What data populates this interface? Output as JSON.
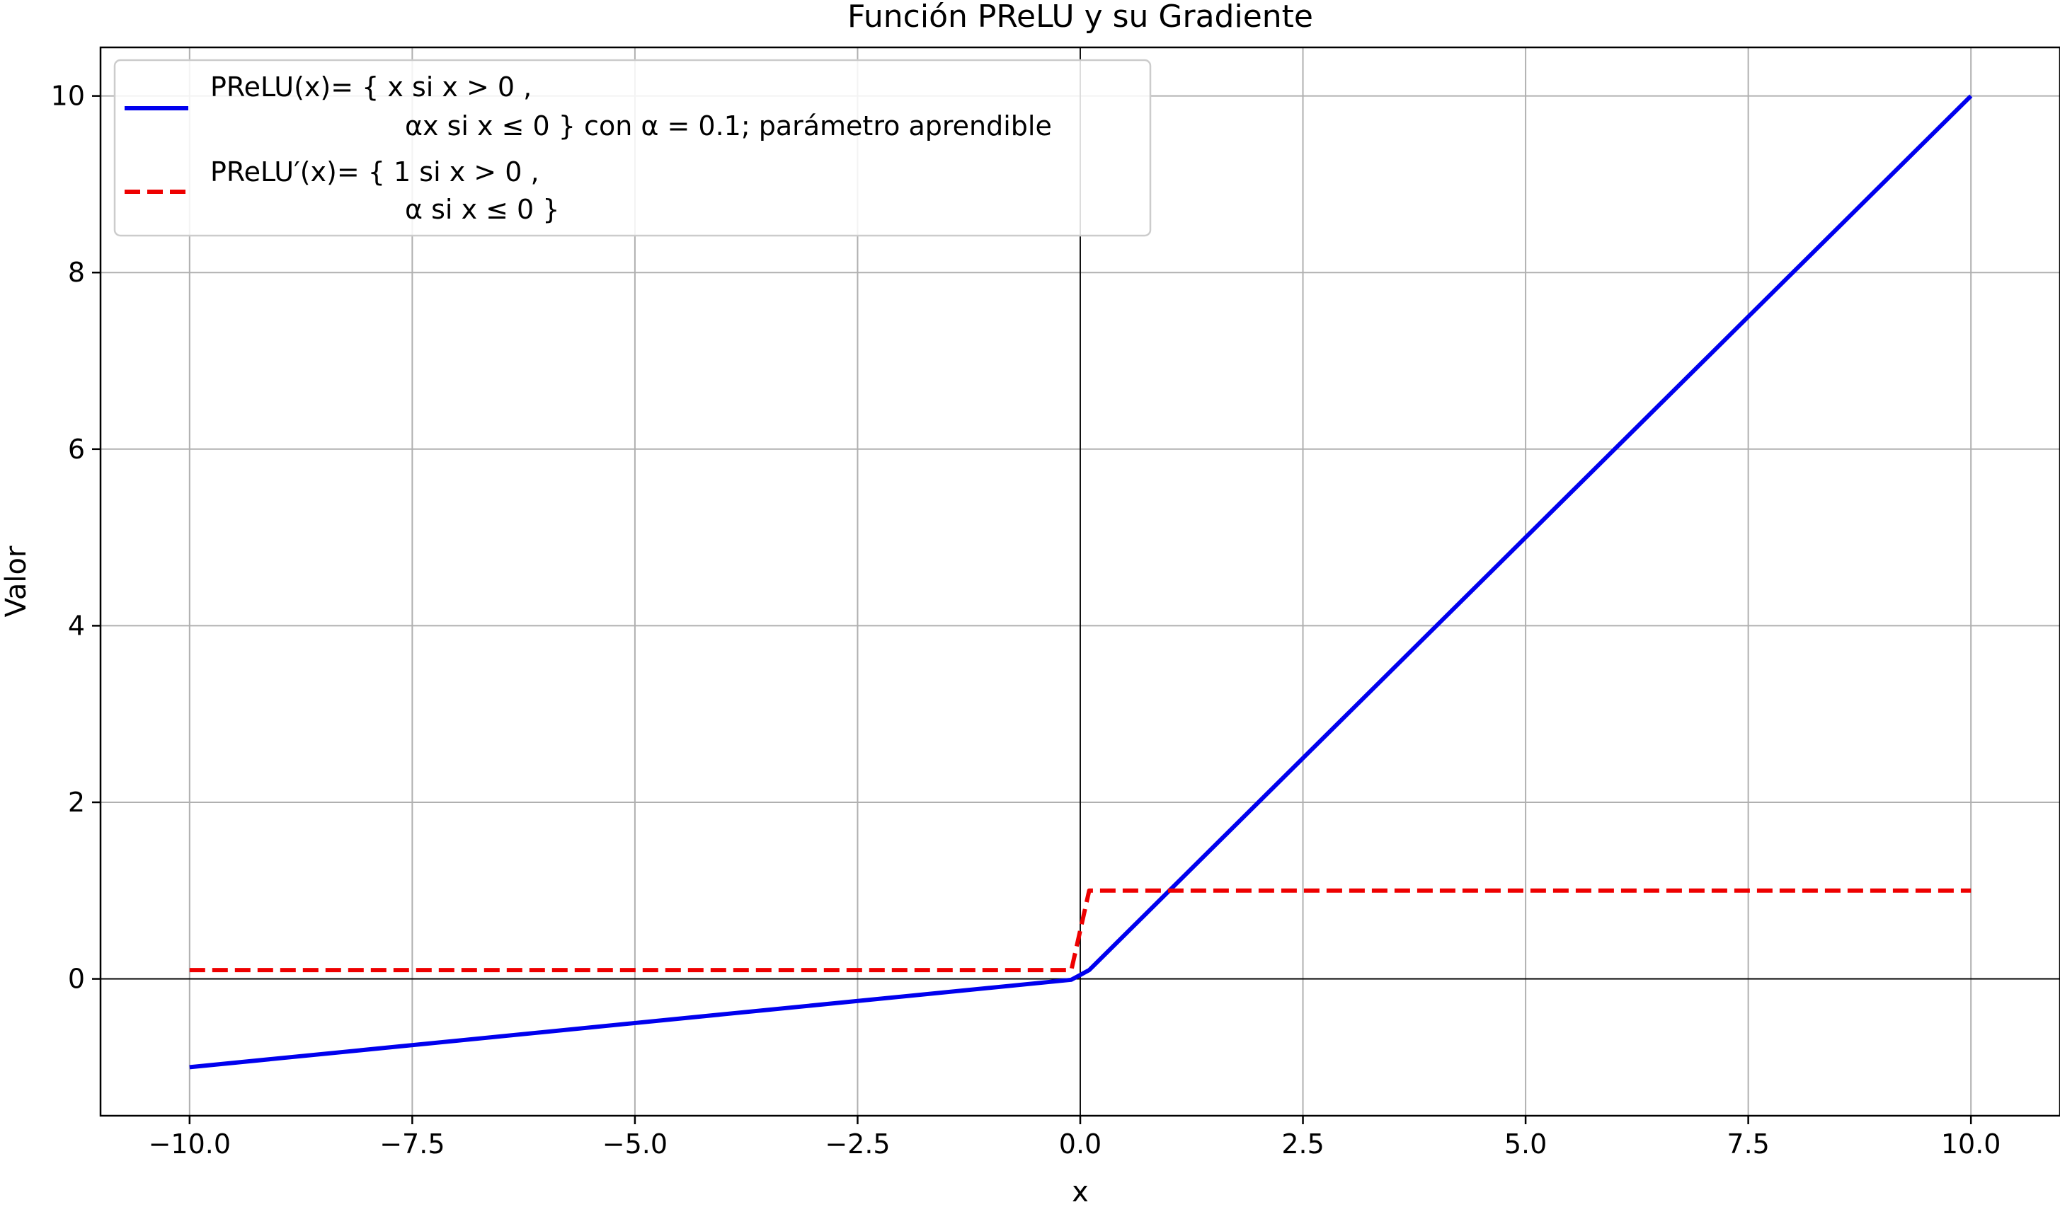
{
  "chart_data": {
    "type": "line",
    "title": "Función PReLU y su Gradiente",
    "xlabel": "x",
    "ylabel": "Valor",
    "xlim": [
      -11.0,
      11.0
    ],
    "ylim": [
      -1.55,
      10.55
    ],
    "xticks": [
      -10.0,
      -7.5,
      -5.0,
      -2.5,
      0.0,
      2.5,
      5.0,
      7.5,
      10.0
    ],
    "xtick_labels": [
      "−10.0",
      "−7.5",
      "−5.0",
      "−2.5",
      "0.0",
      "2.5",
      "5.0",
      "7.5",
      "10.0"
    ],
    "yticks": [
      0,
      2,
      4,
      6,
      8,
      10
    ],
    "ytick_labels": [
      "0",
      "2",
      "4",
      "6",
      "8",
      "10"
    ],
    "grid": true,
    "legend_position": "upper-left",
    "reference_lines": {
      "x": 0,
      "y": 0
    },
    "series": [
      {
        "name_line1": "PReLU(x)= { x    si x > 0 ,",
        "name_line2": "αx  si x  ≤  0 } con  α = 0.1; parámetro aprendible",
        "color": "#0000ee",
        "style": "solid",
        "x": [
          -10.0,
          -0.1,
          0.1,
          10.0
        ],
        "y": [
          -1.0,
          -0.01,
          0.1,
          10.0
        ]
      },
      {
        "name_line1": "PReLU′(x)= { 1  si x > 0 ,",
        "name_line2": "α  si x ≤   0  }",
        "color": "#ee0000",
        "style": "dashed",
        "x": [
          -10.0,
          -0.1,
          0.1,
          10.0
        ],
        "y": [
          0.1,
          0.1,
          1.0,
          1.0
        ]
      }
    ]
  }
}
